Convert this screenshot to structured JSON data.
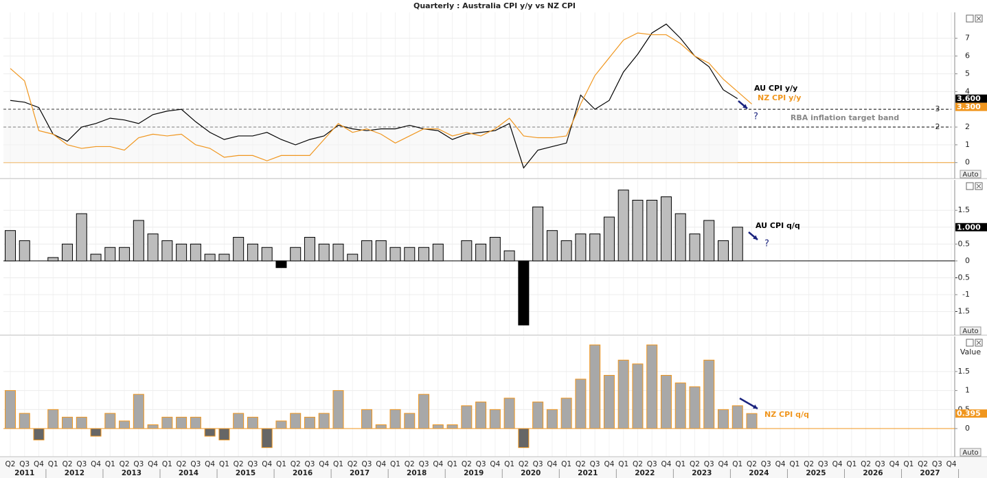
{
  "title": "Quarterly : Australia CPI y/y vs NZ CPI",
  "auto_label": "Auto",
  "x_axis": {
    "categories": [
      "Q2",
      "Q3",
      "Q4",
      "Q1",
      "Q2",
      "Q3",
      "Q4",
      "Q1",
      "Q2",
      "Q3",
      "Q4",
      "Q1",
      "Q2",
      "Q3",
      "Q4",
      "Q1",
      "Q2",
      "Q3",
      "Q4",
      "Q1",
      "Q2",
      "Q3",
      "Q4",
      "Q1",
      "Q2",
      "Q3",
      "Q4",
      "Q1",
      "Q2",
      "Q3",
      "Q4",
      "Q1",
      "Q2",
      "Q3",
      "Q4",
      "Q1",
      "Q2",
      "Q3",
      "Q4",
      "Q1",
      "Q2",
      "Q3",
      "Q4",
      "Q1",
      "Q2",
      "Q3",
      "Q4",
      "Q1",
      "Q2",
      "Q3",
      "Q4",
      "Q1",
      "Q2",
      "Q3",
      "Q4",
      "Q1",
      "Q2",
      "Q3",
      "Q4",
      "Q1",
      "Q2",
      "Q3",
      "Q4",
      "Q1",
      "Q2",
      "Q3",
      "Q4"
    ],
    "years": [
      "2011",
      "2012",
      "2013",
      "2014",
      "2015",
      "2016",
      "2017",
      "2018",
      "2019",
      "2020",
      "2021",
      "2022",
      "2023",
      "2024",
      "2025",
      "2026",
      "2027"
    ]
  },
  "chart_data": [
    {
      "type": "line",
      "ylim": [
        -0.9,
        8.46
      ],
      "yticks": [
        0,
        1,
        2,
        4,
        5,
        6,
        7
      ],
      "grid": true,
      "ref_lines": [
        3,
        2
      ],
      "zero_line_color": "#f0a030",
      "band_label": "RBA inflation target band",
      "annotations": [
        "?"
      ],
      "series": [
        {
          "name": "AU CPI y/y",
          "color": "#000000",
          "values": [
            3.5,
            3.4,
            3.1,
            1.6,
            1.2,
            2.0,
            2.2,
            2.5,
            2.4,
            2.2,
            2.7,
            2.9,
            3.0,
            2.3,
            1.7,
            1.3,
            1.5,
            1.5,
            1.7,
            1.3,
            1.0,
            1.3,
            1.5,
            2.1,
            1.9,
            1.8,
            1.9,
            1.9,
            2.1,
            1.9,
            1.8,
            1.3,
            1.6,
            1.7,
            1.8,
            2.2,
            -0.3,
            0.7,
            0.9,
            1.1,
            3.8,
            3.0,
            3.5,
            5.1,
            6.1,
            7.3,
            7.8,
            7.0,
            6.0,
            5.4,
            4.1,
            3.6
          ],
          "value_labels": [
            null,
            null,
            null,
            null,
            null,
            null,
            null,
            null,
            null,
            null,
            null,
            null,
            null,
            null,
            null,
            null,
            null,
            null,
            null,
            null,
            null,
            null,
            null,
            null,
            null,
            null,
            null,
            null,
            null,
            null,
            null,
            null,
            null,
            null,
            null,
            null,
            null,
            null,
            null,
            null,
            null,
            null,
            null,
            null,
            null,
            null,
            null,
            null,
            null,
            null,
            null,
            "3.600"
          ]
        },
        {
          "name": "NZ CPI y/y",
          "color": "#f0961e",
          "values": [
            5.3,
            4.6,
            1.8,
            1.6,
            1.0,
            0.8,
            0.9,
            0.9,
            0.7,
            1.4,
            1.6,
            1.5,
            1.6,
            1.0,
            0.8,
            0.3,
            0.4,
            0.4,
            0.1,
            0.4,
            0.4,
            0.4,
            1.3,
            2.2,
            1.7,
            1.9,
            1.6,
            1.1,
            1.5,
            1.9,
            1.9,
            1.5,
            1.7,
            1.5,
            1.9,
            2.5,
            1.5,
            1.4,
            1.4,
            1.5,
            3.3,
            4.9,
            5.9,
            6.9,
            7.3,
            7.2,
            7.2,
            6.7,
            6.0,
            5.6,
            4.7,
            4.0,
            3.3
          ],
          "value_labels": [
            null,
            null,
            null,
            null,
            null,
            null,
            null,
            null,
            null,
            null,
            null,
            null,
            null,
            null,
            null,
            null,
            null,
            null,
            null,
            null,
            null,
            null,
            null,
            null,
            null,
            null,
            null,
            null,
            null,
            null,
            null,
            null,
            null,
            null,
            null,
            null,
            null,
            null,
            null,
            null,
            null,
            null,
            null,
            null,
            null,
            null,
            null,
            null,
            null,
            null,
            null,
            null,
            "3.300"
          ]
        }
      ]
    },
    {
      "type": "bar",
      "ylim": [
        -2.2,
        2.4
      ],
      "yticks": [
        -1.5,
        -1,
        -0.5,
        0,
        0.5,
        1,
        1.5
      ],
      "grid": true,
      "annotations": [
        "?"
      ],
      "series": [
        {
          "name": "AU CPI q/q",
          "color": "#bdbdbd",
          "edge_color": "#000000",
          "negative_color": "#000000",
          "label_color": "#000000",
          "values": [
            0.9,
            0.6,
            0.0,
            0.1,
            0.5,
            1.4,
            0.2,
            0.4,
            0.4,
            1.2,
            0.8,
            0.6,
            0.5,
            0.5,
            0.2,
            0.2,
            0.7,
            0.5,
            0.4,
            -0.2,
            0.4,
            0.7,
            0.5,
            0.5,
            0.2,
            0.6,
            0.6,
            0.4,
            0.4,
            0.4,
            0.5,
            0.0,
            0.6,
            0.5,
            0.7,
            0.3,
            -1.9,
            1.6,
            0.9,
            0.6,
            0.8,
            0.8,
            1.3,
            2.1,
            1.8,
            1.8,
            1.9,
            1.4,
            0.8,
            1.2,
            0.6,
            1.0
          ],
          "value_labels": [
            null,
            null,
            null,
            null,
            null,
            null,
            null,
            null,
            null,
            null,
            null,
            null,
            null,
            null,
            null,
            null,
            null,
            null,
            null,
            null,
            null,
            null,
            null,
            null,
            null,
            null,
            null,
            null,
            null,
            null,
            null,
            null,
            null,
            null,
            null,
            null,
            null,
            null,
            null,
            null,
            null,
            null,
            null,
            null,
            null,
            null,
            null,
            null,
            null,
            null,
            null,
            "1.000"
          ]
        }
      ]
    },
    {
      "type": "bar",
      "ylim": [
        -0.74,
        2.42
      ],
      "yticks": [
        0,
        0.5,
        1,
        1.5
      ],
      "grid": true,
      "y_label": "Value",
      "annotations": [],
      "series": [
        {
          "name": "NZ CPI q/q",
          "color": "#a8a8a8",
          "edge_color": "#f0961e",
          "negative_color": "#666666",
          "label_color": "#f0961e",
          "values": [
            1.0,
            0.4,
            -0.3,
            0.5,
            0.3,
            0.3,
            -0.2,
            0.4,
            0.2,
            0.9,
            0.1,
            0.3,
            0.3,
            0.3,
            -0.2,
            -0.3,
            0.4,
            0.3,
            -0.5,
            0.2,
            0.4,
            0.3,
            0.4,
            1.0,
            0.0,
            0.5,
            0.1,
            0.5,
            0.4,
            0.9,
            0.1,
            0.1,
            0.6,
            0.7,
            0.5,
            0.8,
            -0.5,
            0.7,
            0.5,
            0.8,
            1.3,
            2.2,
            1.4,
            1.8,
            1.7,
            2.2,
            1.4,
            1.2,
            1.1,
            1.8,
            0.5,
            0.6,
            0.395
          ],
          "value_labels": [
            null,
            null,
            null,
            null,
            null,
            null,
            null,
            null,
            null,
            null,
            null,
            null,
            null,
            null,
            null,
            null,
            null,
            null,
            null,
            null,
            null,
            null,
            null,
            null,
            null,
            null,
            null,
            null,
            null,
            null,
            null,
            null,
            null,
            null,
            null,
            null,
            null,
            null,
            null,
            null,
            null,
            null,
            null,
            null,
            null,
            null,
            null,
            null,
            null,
            null,
            null,
            null,
            "0.395"
          ]
        }
      ]
    }
  ]
}
